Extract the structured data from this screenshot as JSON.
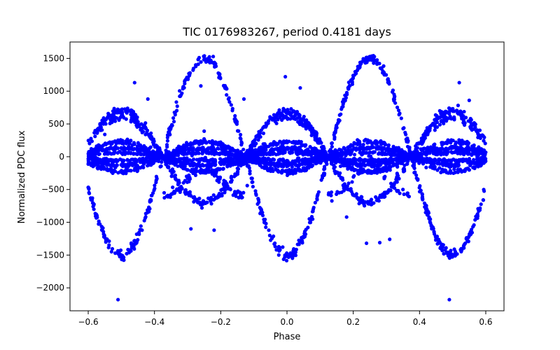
{
  "chart_data": {
    "type": "scatter",
    "title": "TIC 0176983267, period 0.4181 days",
    "xlabel": "Phase",
    "ylabel": "Normalized PDC flux",
    "xlim": [
      -0.655,
      0.655
    ],
    "ylim": [
      -2350,
      1750
    ],
    "xticks": [
      -0.6,
      -0.4,
      -0.2,
      0.0,
      0.2,
      0.4,
      0.6
    ],
    "xtick_labels": [
      "−0.6",
      "−0.4",
      "−0.2",
      "0.0",
      "0.2",
      "0.4",
      "0.6"
    ],
    "yticks": [
      -2000,
      -1500,
      -1000,
      -500,
      0,
      500,
      1000,
      1500
    ],
    "ytick_labels": [
      "−2000",
      "−1500",
      "−1000",
      "−500",
      "0",
      "500",
      "1000",
      "1500"
    ],
    "grid": false,
    "legend": "none",
    "color": "#0000ff",
    "x_range_of_points": [
      -0.6,
      0.6
    ],
    "bands": [
      {
        "amplitude": 1500,
        "frequency_cycles_per_phase": 2,
        "phase_offset": 0.0,
        "sign_envelope": "sin(2*pi*x*2 - pi/2) mapped: peaks at x=±0.25, troughs at x=0,±0.5"
      },
      {
        "amplitude": 700,
        "frequency_cycles_per_phase": 2,
        "description": "peaks at x=0,±0.5, troughs at x=±0.25"
      },
      {
        "amplitude": 230,
        "description": "inner band, peaks at x=±0.25,±0.5,0"
      },
      {
        "amplitude": 120,
        "description": "inner band"
      },
      {
        "amplitude": 50,
        "description": "innermost band"
      }
    ],
    "outliers": [
      {
        "x": -0.51,
        "y": -2180
      },
      {
        "x": 0.49,
        "y": -2180
      },
      {
        "x": -0.005,
        "y": 1220
      },
      {
        "x": 0.04,
        "y": 1050
      },
      {
        "x": -0.46,
        "y": 1130
      },
      {
        "x": 0.52,
        "y": 1130
      },
      {
        "x": -0.42,
        "y": 880
      },
      {
        "x": -0.26,
        "y": 1080
      },
      {
        "x": -0.29,
        "y": -1100
      },
      {
        "x": -0.22,
        "y": -1120
      },
      {
        "x": 0.31,
        "y": -1260
      },
      {
        "x": 0.24,
        "y": -1320
      },
      {
        "x": 0.18,
        "y": -920
      },
      {
        "x": -0.13,
        "y": 880
      },
      {
        "x": -0.25,
        "y": 390
      },
      {
        "x": -0.12,
        "y": -440
      },
      {
        "x": 0.35,
        "y": -500
      },
      {
        "x": 0.55,
        "y": 860
      },
      {
        "x": -0.55,
        "y": 340
      },
      {
        "x": 0.28,
        "y": -1310
      }
    ]
  }
}
